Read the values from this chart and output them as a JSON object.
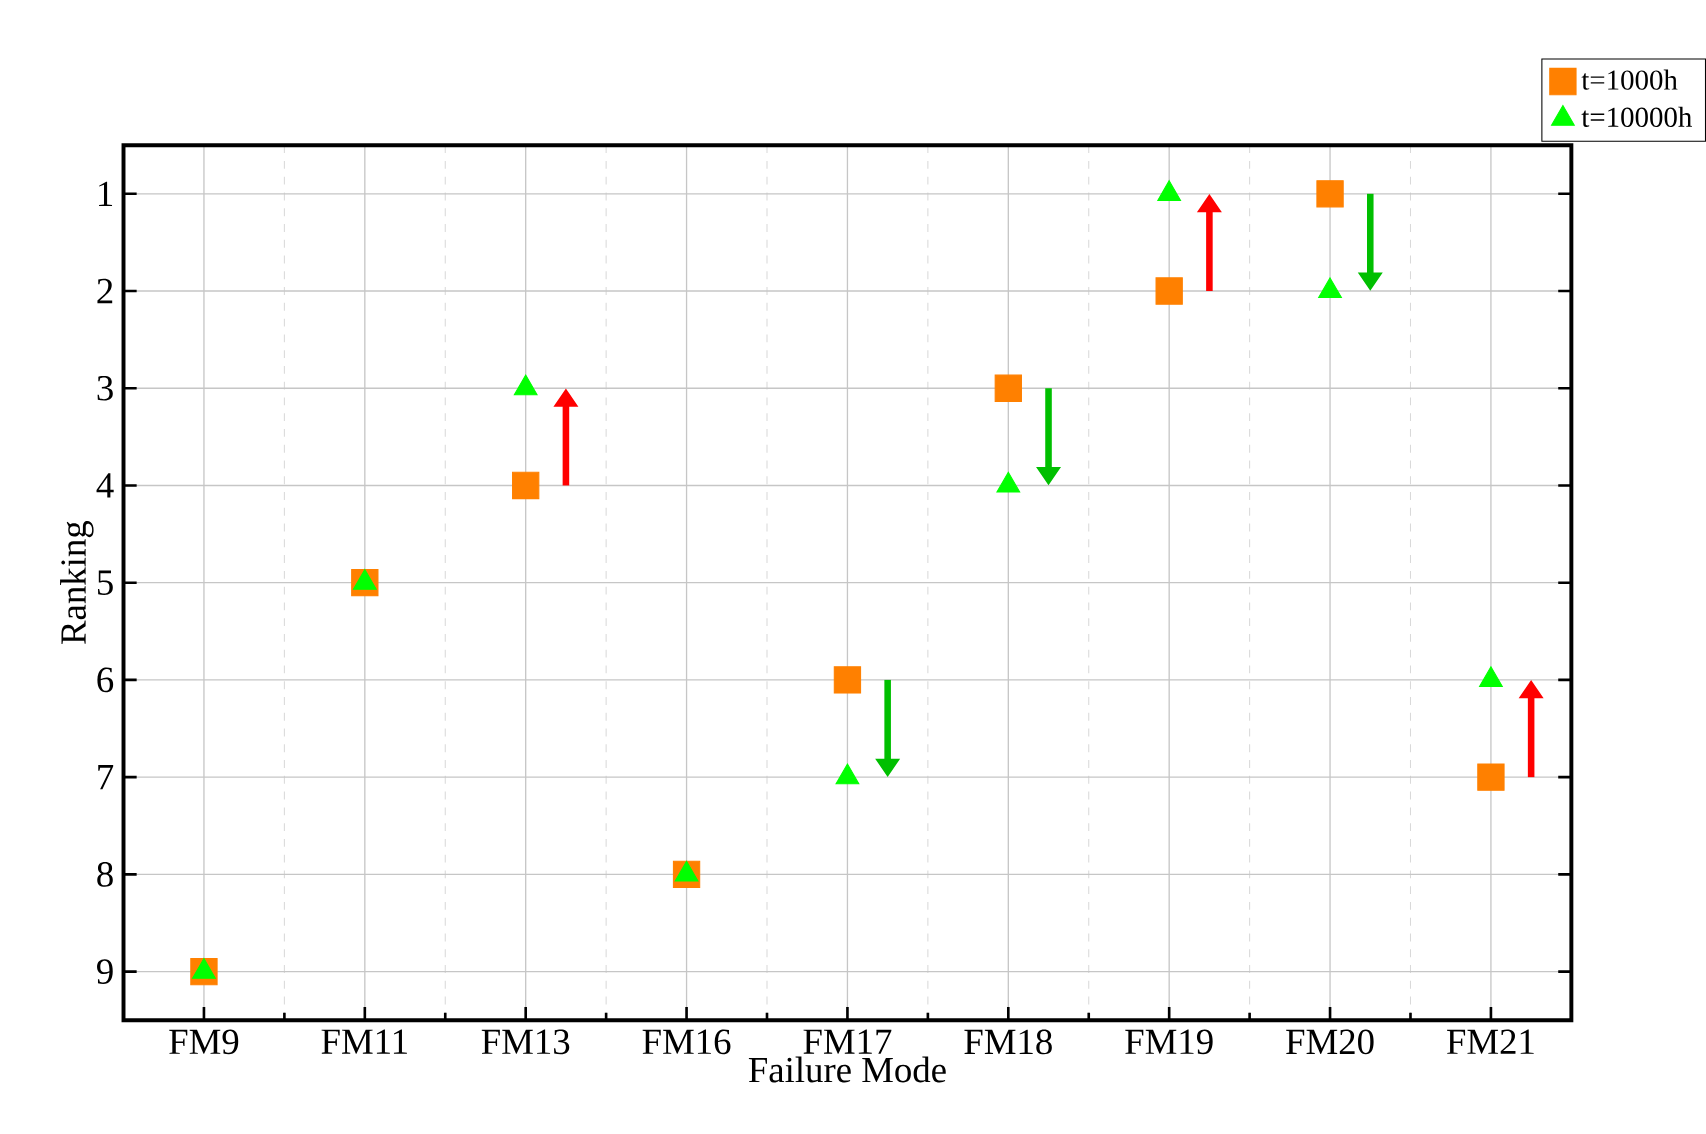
{
  "chart_data": {
    "type": "scatter",
    "xlabel": "Failure Mode",
    "ylabel": "Ranking",
    "categories": [
      "FM9",
      "FM11",
      "FM13",
      "FM16",
      "FM17",
      "FM18",
      "FM19",
      "FM20",
      "FM21"
    ],
    "series": [
      {
        "name": "t=1000h",
        "color": "#ff8000",
        "marker": "square",
        "values": [
          9,
          5,
          4,
          8,
          6,
          3,
          2,
          1,
          7
        ]
      },
      {
        "name": "t=10000h",
        "color": "#00ff00",
        "marker": "triangle",
        "values": [
          9,
          5,
          3,
          8,
          7,
          4,
          1,
          2,
          6
        ]
      }
    ],
    "ylim": [
      9.5,
      0.5
    ],
    "yticks": [
      1,
      2,
      3,
      4,
      5,
      6,
      7,
      8,
      9
    ],
    "grid": true,
    "legend": "top right"
  }
}
